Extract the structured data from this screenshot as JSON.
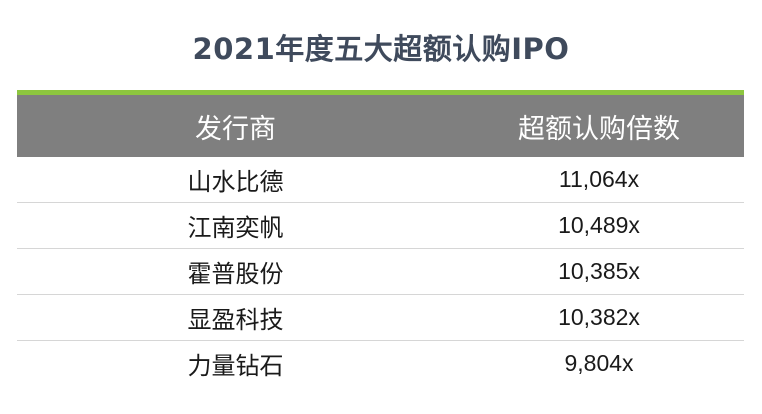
{
  "title": "2021年度五大超额认购IPO",
  "colors": {
    "title": "#3f4a5c",
    "accent_rule": "#8dc63f",
    "header_bg": "#7f7f7f",
    "header_text": "#ffffff",
    "row_divider": "#d6d6d6"
  },
  "chart_data": {
    "type": "table",
    "title": "2021年度五大超额认购IPO",
    "columns": [
      "发行商",
      "超额认购倍数"
    ],
    "rows": [
      {
        "issuer": "山水比德",
        "oversubscription": 11064,
        "label": "11,064x"
      },
      {
        "issuer": "江南奕帆",
        "oversubscription": 10489,
        "label": "10,489x"
      },
      {
        "issuer": "霍普股份",
        "oversubscription": 10385,
        "label": "10,385x"
      },
      {
        "issuer": "显盈科技",
        "oversubscription": 10382,
        "label": "10,382x"
      },
      {
        "issuer": "力量钻石",
        "oversubscription": 9804,
        "label": "9,804x"
      }
    ]
  }
}
